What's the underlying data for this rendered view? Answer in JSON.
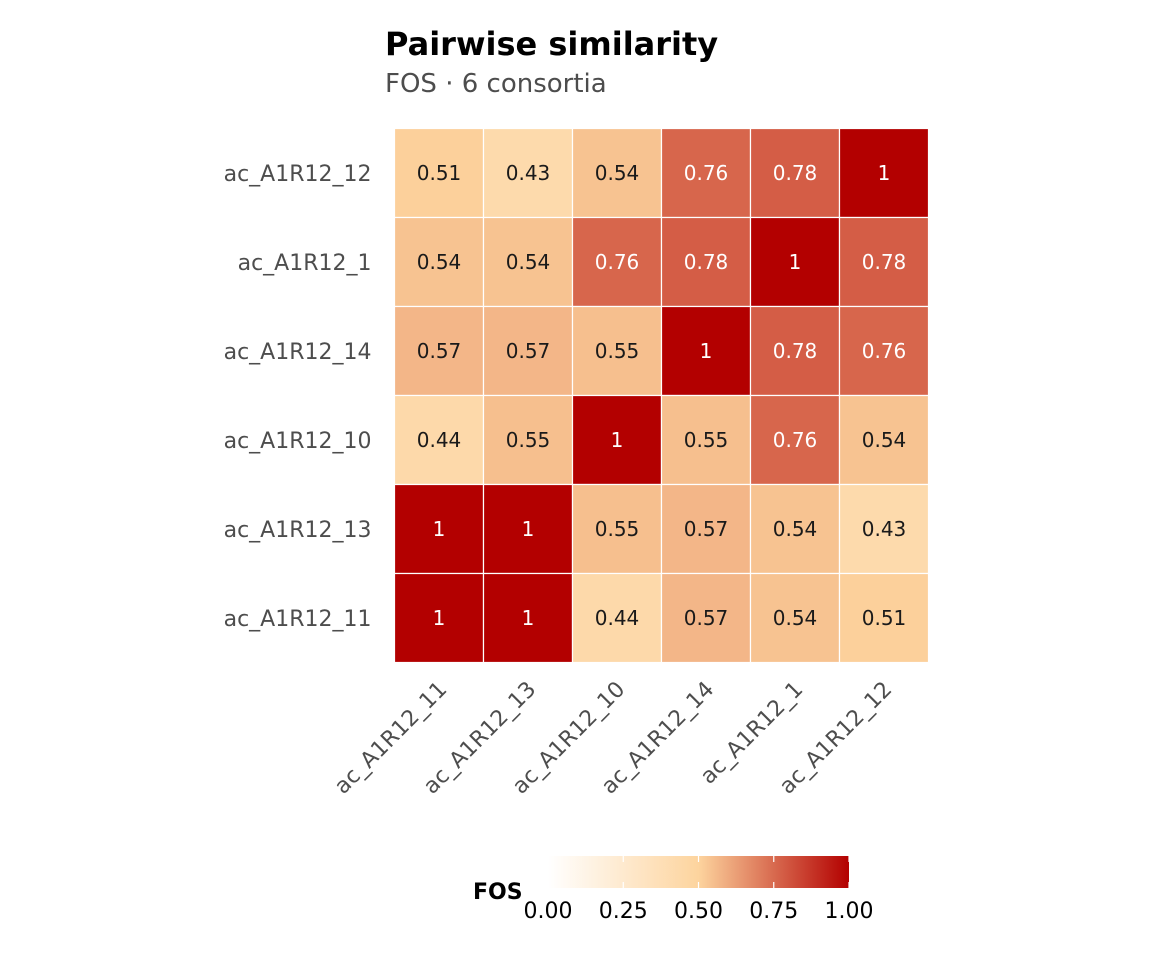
{
  "chart_data": {
    "type": "heatmap",
    "title": "Pairwise similarity",
    "subtitle": "FOS · 6 consortia",
    "x_categories": [
      "ac_A1R12_11",
      "ac_A1R12_13",
      "ac_A1R12_10",
      "ac_A1R12_14",
      "ac_A1R12_1",
      "ac_A1R12_12"
    ],
    "y_categories_top_to_bottom": [
      "ac_A1R12_12",
      "ac_A1R12_1",
      "ac_A1R12_14",
      "ac_A1R12_10",
      "ac_A1R12_13",
      "ac_A1R12_11"
    ],
    "values": [
      [
        0.51,
        0.43,
        0.54,
        0.76,
        0.78,
        1
      ],
      [
        0.54,
        0.54,
        0.76,
        0.78,
        1,
        0.78
      ],
      [
        0.57,
        0.57,
        0.55,
        1,
        0.78,
        0.76
      ],
      [
        0.44,
        0.55,
        1,
        0.55,
        0.76,
        0.54
      ],
      [
        1,
        1,
        0.55,
        0.57,
        0.54,
        0.43
      ],
      [
        1,
        1,
        0.44,
        0.57,
        0.54,
        0.51
      ]
    ],
    "legend": {
      "title": "FOS",
      "ticks": [
        "0.00",
        "0.25",
        "0.50",
        "0.75",
        "1.00"
      ],
      "range": [
        0,
        1
      ],
      "placement": "bottom"
    },
    "colors": {
      "low": "#ffffff",
      "mid": "#fdd49e",
      "high": "#b30000",
      "gradient_stops": [
        "#fff7ec",
        "#fdd49e",
        "#fdbb84",
        "#ef6548",
        "#b30000"
      ],
      "cell_border": "#ffffff",
      "label_dark": "#1a1a1a",
      "label_light": "#ffffff"
    },
    "grid": false
  }
}
